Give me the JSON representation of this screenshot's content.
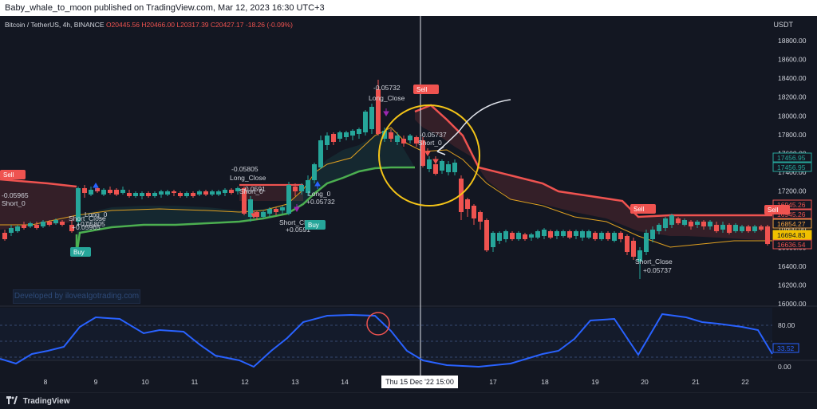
{
  "header": {
    "publish_line": "Baby_whale_to_moon published on TradingView.com, Mar 12, 2023 16:30 UTC+3"
  },
  "legend": {
    "symbol": "Bitcoin / TetherUS, 4h, BINANCE",
    "open": "O20445.56",
    "high": "H20466.00",
    "low": "L20317.39",
    "close": "C20427.17",
    "change": "-18.26 (-0.09%)"
  },
  "price_axis": {
    "currency": "USDT",
    "labels": [
      "18800.00",
      "18600.00",
      "18400.00",
      "18200.00",
      "18000.00",
      "17800.00",
      "17600.00",
      "17400.00",
      "17200.00",
      "17000.00",
      "16800.00",
      "16600.00",
      "16400.00",
      "16200.00",
      "16000.00"
    ],
    "badges": [
      {
        "text": "17456.95",
        "color": "#26a69a"
      },
      {
        "text": "17456.95",
        "color": "#26a69a"
      },
      {
        "text": "16945.26",
        "color": "#ef5350"
      },
      {
        "text": "16945.26",
        "color": "#ef5350"
      },
      {
        "text": "16854.27",
        "color": "#f0a040"
      },
      {
        "text": "16694.83",
        "color": "#f0c000"
      },
      {
        "text": "16636.54",
        "color": "#ef5350"
      }
    ]
  },
  "osc_axis": {
    "labels": [
      "80.00",
      "0.00"
    ],
    "current": "33.52"
  },
  "time_axis": {
    "labels": [
      "8",
      "9",
      "10",
      "11",
      "12",
      "13",
      "14",
      "17",
      "18",
      "19",
      "20",
      "21",
      "22"
    ],
    "crosshair_label": "Thu 15 Dec '22   15:00"
  },
  "watermark": "Developed by iloveaIgotrading.com",
  "annotations": [
    {
      "text": "-0.05732"
    },
    {
      "text": "Long_Close"
    },
    {
      "text": "-0.05737"
    },
    {
      "text": "Short_0"
    },
    {
      "text": "-0.05805"
    },
    {
      "text": "Long_Close"
    },
    {
      "text": "-0.0591"
    },
    {
      "text": "Short_0"
    },
    {
      "text": "Long_0"
    },
    {
      "text": "+0.05732"
    },
    {
      "text": "Short_Close"
    },
    {
      "text": "+0.0591"
    },
    {
      "text": "-0.05965"
    },
    {
      "text": "Short_0"
    },
    {
      "text": "Short_Close"
    },
    {
      "text": "+0.05805"
    },
    {
      "text": "+0.05965"
    },
    {
      "text": "Long_0"
    },
    {
      "text": "Short_Close"
    },
    {
      "text": "+0.05737"
    }
  ],
  "signals": [
    {
      "label": "Buy",
      "color": "#26a69a"
    },
    {
      "label": "Sell",
      "color": "#ef5350"
    },
    {
      "label": "Sell",
      "color": "#ef5350"
    },
    {
      "label": "Sell",
      "color": "#ef5350"
    },
    {
      "label": "Buy",
      "color": "#26a69a"
    },
    {
      "label": "Sell",
      "color": "#ef5350"
    }
  ],
  "footer": {
    "brand": "TradingView"
  },
  "colors": {
    "bull": "#26a69a",
    "bear": "#ef5350",
    "osc": "#2962ff",
    "circle": "#f5c518"
  }
}
